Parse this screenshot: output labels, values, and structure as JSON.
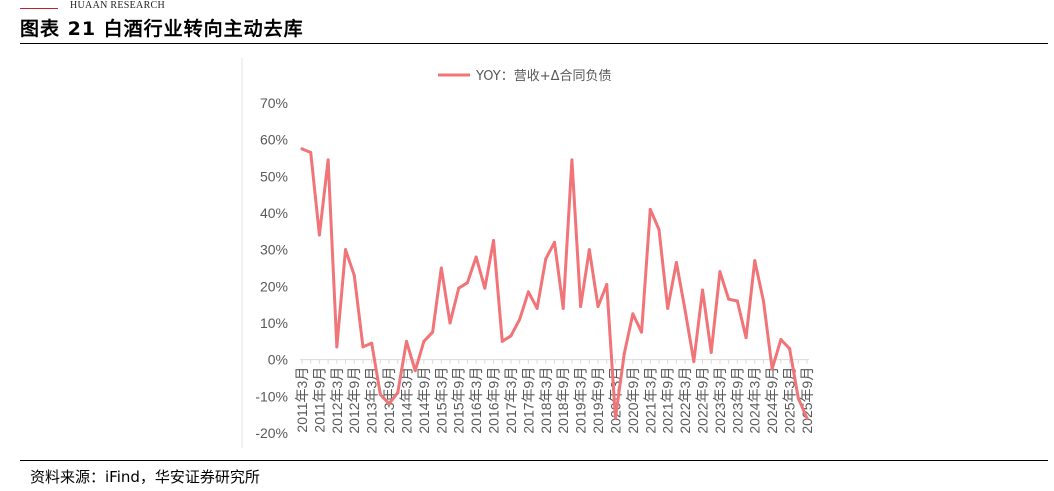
{
  "header": {
    "brand": "HUAAN RESEARCH",
    "figure_title": "图表 21 白酒行业转向主动去库"
  },
  "footer": {
    "source": "资料来源：iFind，华安证券研究所"
  },
  "colors": {
    "line": "#f07478",
    "brand_red": "#c0222b",
    "axis": "#d9d9d9",
    "text": "#595959"
  },
  "chart_data": {
    "type": "line",
    "title": "",
    "xlabel": "",
    "ylabel": "",
    "ylim": [
      -20,
      70
    ],
    "y_ticks": [
      "70%",
      "60%",
      "50%",
      "40%",
      "30%",
      "20%",
      "10%",
      "0%",
      "-10%",
      "-20%"
    ],
    "grid": false,
    "legend_position": "top",
    "x": [
      "2011年3月",
      "2011年6月",
      "2011年9月",
      "2011年12月",
      "2012年3月",
      "2012年6月",
      "2012年9月",
      "2012年12月",
      "2013年3月",
      "2013年6月",
      "2013年9月",
      "2013年12月",
      "2014年3月",
      "2014年6月",
      "2014年9月",
      "2014年12月",
      "2015年3月",
      "2015年6月",
      "2015年9月",
      "2015年12月",
      "2016年3月",
      "2016年6月",
      "2016年9月",
      "2016年12月",
      "2017年3月",
      "2017年6月",
      "2017年9月",
      "2017年12月",
      "2018年3月",
      "2018年6月",
      "2018年9月",
      "2018年12月",
      "2019年3月",
      "2019年6月",
      "2019年9月",
      "2019年12月",
      "2020年3月",
      "2020年6月",
      "2020年9月",
      "2020年12月",
      "2021年3月",
      "2021年6月",
      "2021年9月",
      "2021年12月",
      "2022年3月",
      "2022年6月",
      "2022年9月",
      "2022年12月",
      "2023年3月",
      "2023年6月",
      "2023年9月",
      "2023年12月",
      "2024年3月",
      "2024年6月",
      "2024年9月",
      "2024年12月",
      "2025年3月",
      "2025年6月",
      "2025年9月"
    ],
    "x_tick_labels": [
      "2011年3月",
      "2011年9月",
      "2012年3月",
      "2012年9月",
      "2013年3月",
      "2013年9月",
      "2014年3月",
      "2014年9月",
      "2015年3月",
      "2015年9月",
      "2016年3月",
      "2016年9月",
      "2017年3月",
      "2017年9月",
      "2018年3月",
      "2018年9月",
      "2019年3月",
      "2019年9月",
      "2020年3月",
      "2020年9月",
      "2021年3月",
      "2021年9月",
      "2022年3月",
      "2022年9月",
      "2023年3月",
      "2023年9月",
      "2024年3月",
      "2024年9月",
      "2025年3月",
      "2025年9月"
    ],
    "series": [
      {
        "name": "YOY：营收+Δ合同负债",
        "color": "#f07478",
        "values": [
          57.5,
          56.5,
          34,
          54.5,
          3.5,
          30,
          23,
          3.5,
          4.5,
          -9.5,
          -12,
          -9,
          5,
          -3,
          5,
          7.5,
          25,
          10,
          19.5,
          21,
          28,
          19.5,
          32.5,
          5,
          6.5,
          11,
          18.5,
          14,
          27.5,
          32,
          14,
          54.5,
          14.5,
          30,
          14.5,
          20.5,
          -16,
          1.5,
          12.5,
          7.5,
          41,
          35.5,
          14,
          26.5,
          13.5,
          -0.5,
          19,
          2,
          24,
          16.5,
          16,
          6,
          27,
          16,
          -2.5,
          5.5,
          3,
          -10.5,
          -16
        ]
      }
    ]
  }
}
